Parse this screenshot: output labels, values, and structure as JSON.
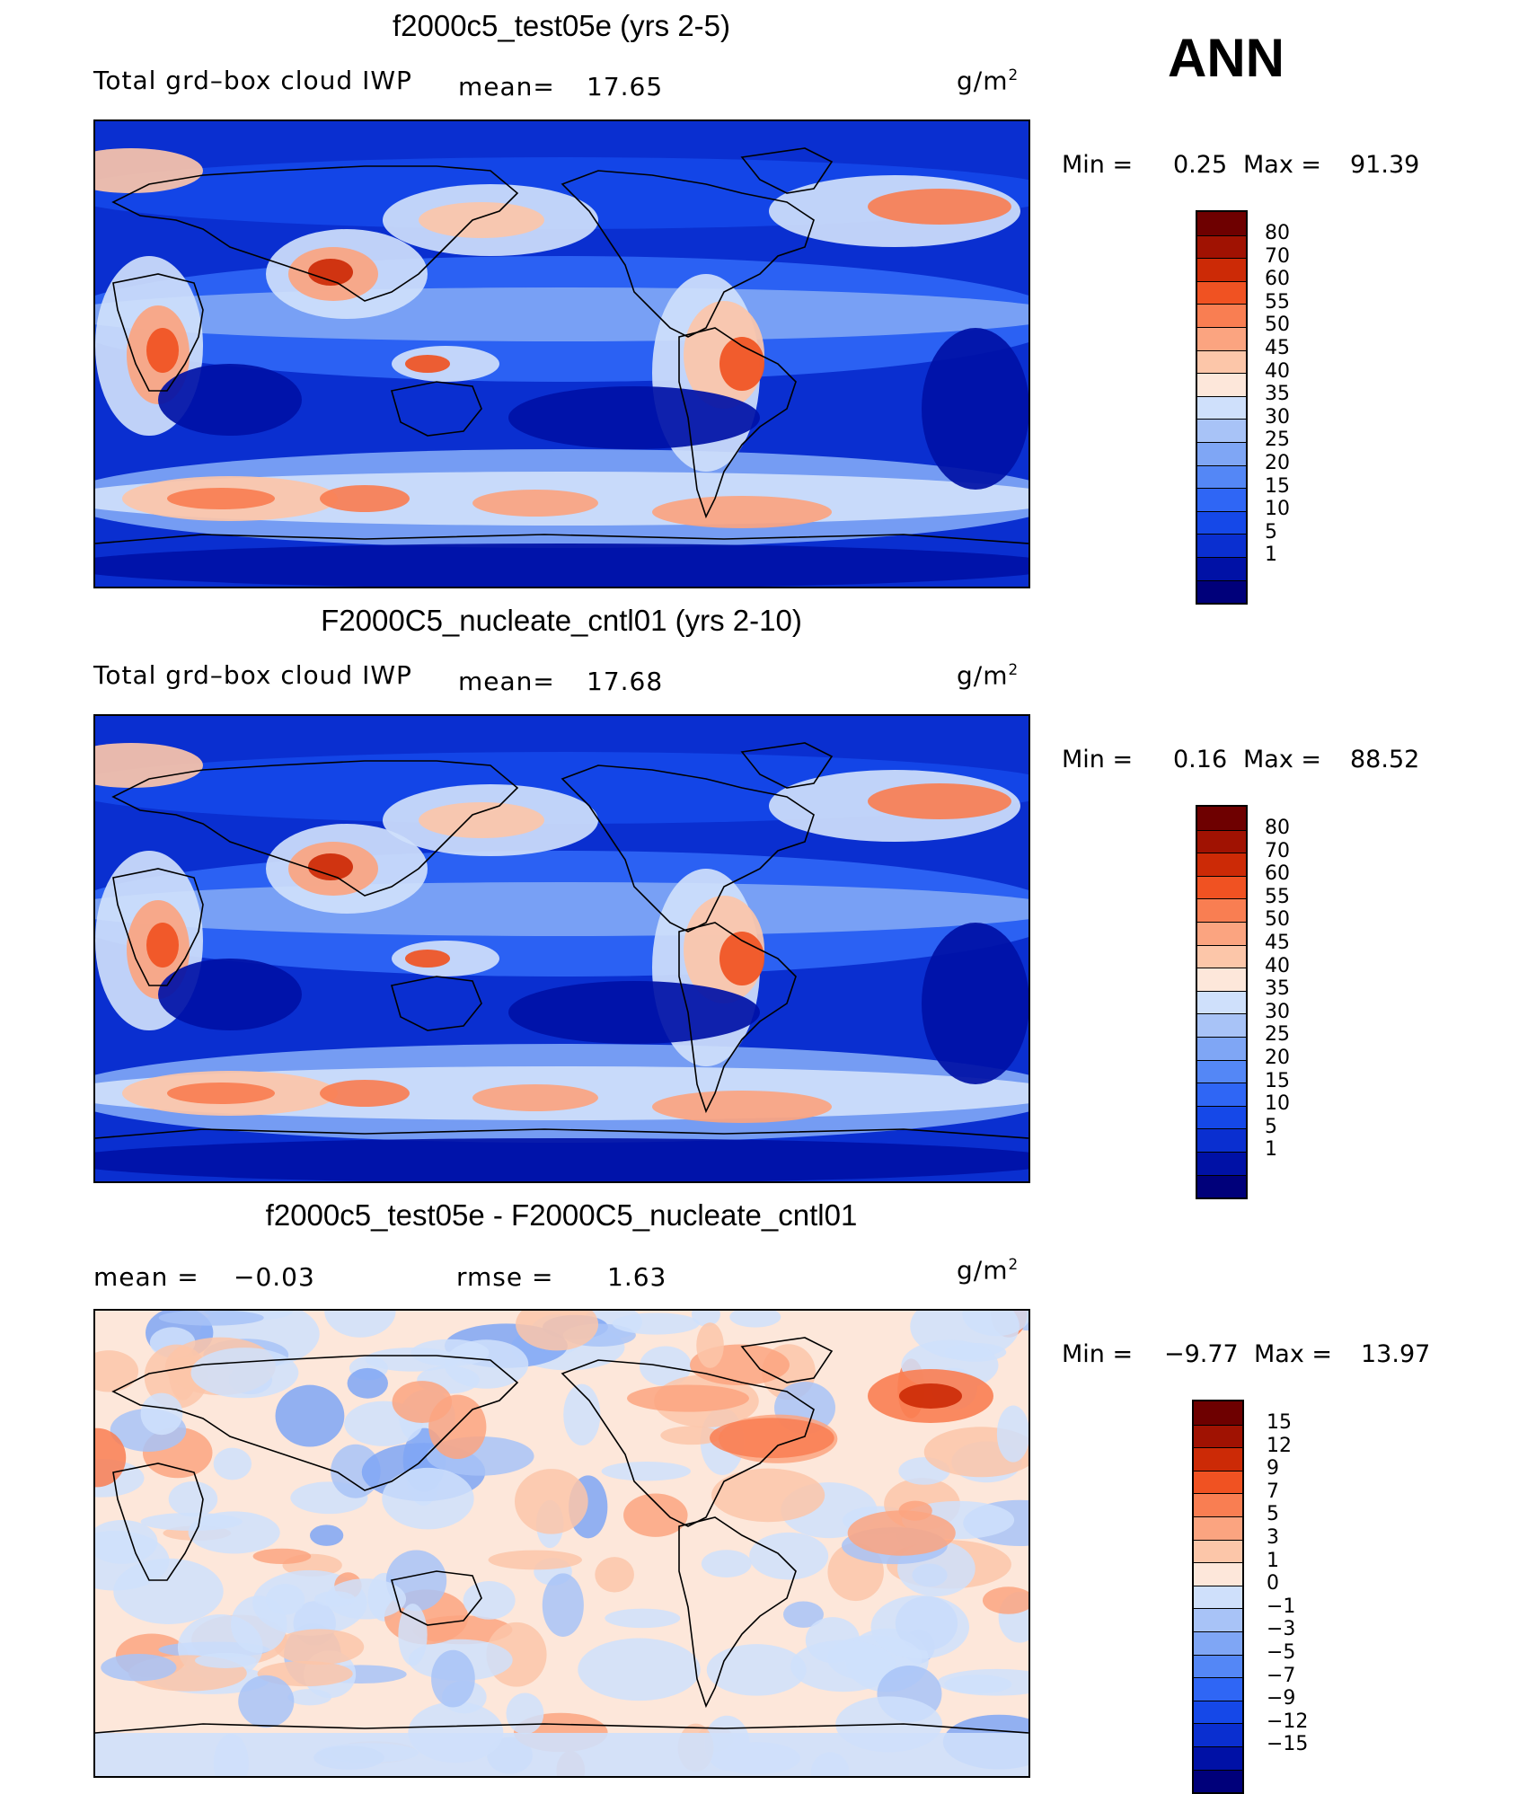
{
  "season": "ANN",
  "palette": {
    "abs": [
      "#00007a",
      "#0011a6",
      "#0a2fd0",
      "#1548e8",
      "#2f66f5",
      "#5487f6",
      "#7fa6f5",
      "#a8c3f7",
      "#cfe0fb",
      "#fde7da",
      "#fcc6a9",
      "#fba480",
      "#f97e52",
      "#f05222",
      "#cc2a06",
      "#a01202",
      "#6e0000"
    ],
    "diff": [
      "#00007a",
      "#0011a6",
      "#0a2fd0",
      "#1548e8",
      "#2f66f5",
      "#5487f6",
      "#7fa6f5",
      "#a8c3f7",
      "#cfe0fb",
      "#fde7da",
      "#fcc6a9",
      "#fba480",
      "#f97e52",
      "#f05222",
      "#cc2a06",
      "#a01202",
      "#6e0000"
    ],
    "coast": "#000000"
  },
  "panels": [
    {
      "title": "f2000c5_test05e (yrs 2-5)",
      "variable": "Total grd–box cloud IWP",
      "mean_label": "mean=",
      "mean_value": "17.65",
      "units_base": "g/m",
      "units_exp": "2",
      "min_label": "Min  =",
      "min_value": "0.25",
      "max_label": "Max  =",
      "max_value": "91.39",
      "levels": [
        "80",
        "70",
        "60",
        "55",
        "50",
        "45",
        "40",
        "35",
        "30",
        "25",
        "20",
        "15",
        "10",
        "5",
        "1"
      ]
    },
    {
      "title": "F2000C5_nucleate_cntl01 (yrs 2-10)",
      "variable": "Total grd–box cloud IWP",
      "mean_label": "mean=",
      "mean_value": "17.68",
      "units_base": "g/m",
      "units_exp": "2",
      "min_label": "Min  =",
      "min_value": "0.16",
      "max_label": "Max  =",
      "max_value": "88.52",
      "levels": [
        "80",
        "70",
        "60",
        "55",
        "50",
        "45",
        "40",
        "35",
        "30",
        "25",
        "20",
        "15",
        "10",
        "5",
        "1"
      ]
    },
    {
      "title": "f2000c5_test05e - F2000C5_nucleate_cntl01",
      "mean_label": "mean  =",
      "mean_value": "−0.03",
      "rmse_label": "rmse  =",
      "rmse_value": "1.63",
      "units_base": "g/m",
      "units_exp": "2",
      "min_label": "Min  =",
      "min_value": "−9.77",
      "max_label": "Max  =",
      "max_value": "13.97",
      "levels": [
        "15",
        "12",
        "9",
        "7",
        "5",
        "3",
        "1",
        "0",
        "−1",
        "−3",
        "−5",
        "−7",
        "−9",
        "−12",
        "−15"
      ]
    }
  ]
}
